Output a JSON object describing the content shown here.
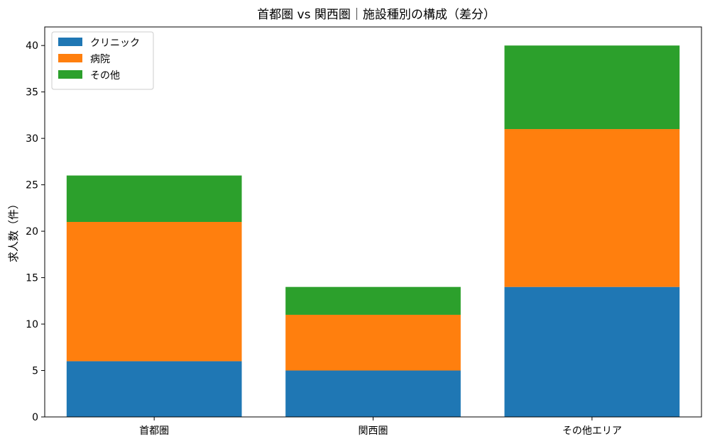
{
  "chart_data": {
    "type": "bar",
    "stacked": true,
    "title": "首都圏 vs 関西圏｜施設種別の構成（差分）",
    "xlabel": "",
    "ylabel": "求人数（件）",
    "categories": [
      "首都圏",
      "関西圏",
      "その他エリア"
    ],
    "series": [
      {
        "name": "クリニック",
        "color": "#1f77b4",
        "values": [
          6,
          5,
          14
        ]
      },
      {
        "name": "病院",
        "color": "#ff7f0e",
        "values": [
          15,
          6,
          17
        ]
      },
      {
        "name": "その他",
        "color": "#2ca02c",
        "values": [
          5,
          3,
          9
        ]
      }
    ],
    "ylim": [
      0,
      42
    ],
    "yticks": [
      0,
      5,
      10,
      15,
      20,
      25,
      30,
      35,
      40
    ],
    "grid": false,
    "legend": "top-left"
  }
}
